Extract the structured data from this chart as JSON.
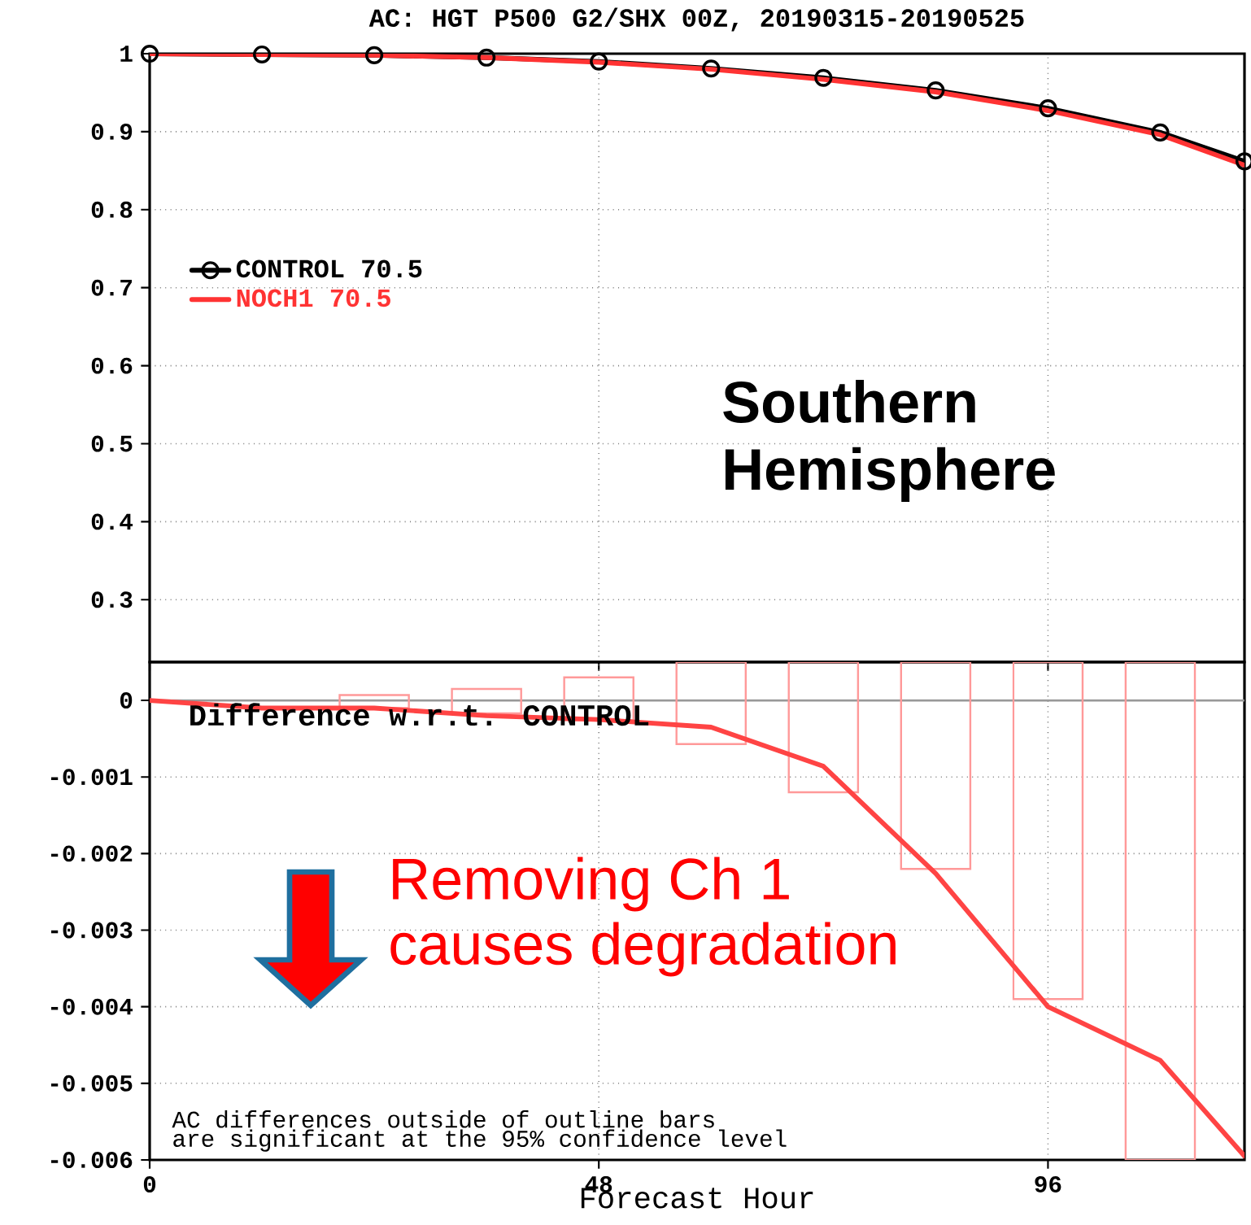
{
  "chart_data": [
    {
      "type": "line",
      "title": "AC: HGT P500 G2/SHX 00Z, 20190315-20190525",
      "xlim": [
        0,
        117
      ],
      "xticks": [
        0,
        48,
        96
      ],
      "ylim": [
        0.22,
        1
      ],
      "yticks": [
        0.3,
        0.4,
        0.5,
        0.6,
        0.7,
        0.8,
        0.9,
        1
      ],
      "tick_labels": "y",
      "grid": true,
      "legend": "left",
      "annotations": [
        "Southern Hemisphere"
      ],
      "x": [
        0,
        12,
        24,
        36,
        48,
        60,
        72,
        84,
        96,
        108,
        117
      ],
      "series": [
        {
          "name": "CONTROL 70.5",
          "color": "#000000",
          "marker": "circle",
          "values": [
            1.0,
            0.999,
            0.998,
            0.995,
            0.99,
            0.981,
            0.969,
            0.953,
            0.93,
            0.899,
            0.862
          ]
        },
        {
          "name": "NOCH1 70.5",
          "color": "#ff3333",
          "marker": "none",
          "values": [
            1.0,
            0.999,
            0.998,
            0.995,
            0.989,
            0.98,
            0.967,
            0.951,
            0.927,
            0.896,
            0.857
          ]
        }
      ]
    },
    {
      "type": "line",
      "xlabel": "Forecast Hour",
      "xlim": [
        0,
        117
      ],
      "xticks": [
        0,
        48,
        96
      ],
      "ylim": [
        -0.006,
        0.0005
      ],
      "yticks": [
        -0.006,
        -0.005,
        -0.004,
        -0.003,
        -0.002,
        -0.001,
        0
      ],
      "grid": true,
      "annotations": [
        "Difference w.r.t. CONTROL",
        "Removing Ch 1 causes degradation",
        "AC differences outside of outline bars",
        "are significant at the 95% confidence level"
      ],
      "ref_lines": [
        {
          "axis": "y",
          "value": 0,
          "color": "#999999"
        }
      ],
      "series": [
        {
          "type": "bar",
          "color": "#ff9999",
          "x": [
            24,
            36,
            48,
            60,
            72,
            84,
            96,
            108
          ],
          "base": [
            -0.0001,
            -0.00017,
            -0.00026,
            -0.00057,
            -0.0012,
            -0.0022,
            -0.0039,
            -0.006
          ],
          "values": [
            0.00017,
            0.00032,
            0.00056,
            0.00107,
            0.0017,
            0.0027,
            0.0044,
            0.0065
          ]
        },
        {
          "type": "line",
          "color": "#ff4444",
          "x": [
            0,
            12,
            24,
            36,
            48,
            60,
            72,
            84,
            96,
            108,
            117
          ],
          "values": [
            0,
            -0.0001,
            -0.0001,
            -0.0002,
            -0.00025,
            -0.00035,
            -0.00086,
            -0.00226,
            -0.004,
            -0.0047,
            -0.00595
          ]
        }
      ]
    }
  ]
}
